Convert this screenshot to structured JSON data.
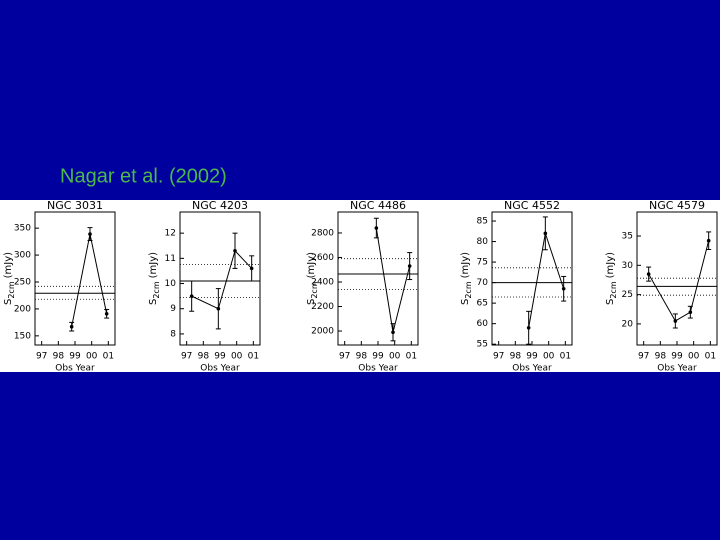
{
  "caption": "Nagar et al. (2002)",
  "chart_data": [
    {
      "type": "line",
      "title": "NGC 3031",
      "xlabel": "Obs Year",
      "ylabel": {
        "symbol": "S",
        "subscript": "2cm",
        "unit": "(mJy)"
      },
      "x": [
        1998.8,
        1999.9,
        2000.9
      ],
      "values": [
        167,
        339,
        191
      ],
      "errors": [
        8,
        12,
        8
      ],
      "xlim": [
        1996.6,
        2001.4
      ],
      "ylim": [
        133,
        380
      ],
      "xticks": [
        {
          "value": 1997,
          "label": "97"
        },
        {
          "value": 1998,
          "label": "98"
        },
        {
          "value": 1999,
          "label": "99"
        },
        {
          "value": 2000,
          "label": "00"
        },
        {
          "value": 2001,
          "label": "01"
        }
      ],
      "yticks": [
        150,
        200,
        250,
        300,
        350
      ],
      "hlines": [
        {
          "value": 229,
          "style": "solid"
        },
        {
          "value": 242,
          "style": "dotted"
        },
        {
          "value": 218,
          "style": "dotted"
        }
      ],
      "color": "#000000"
    },
    {
      "type": "line",
      "title": "NGC 4203",
      "xlabel": "Obs Year",
      "ylabel": {
        "symbol": "S",
        "subscript": "2cm",
        "unit": "(mJy)"
      },
      "x": [
        1997.3,
        1998.9,
        1999.9,
        2000.9
      ],
      "values": [
        9.5,
        9.0,
        11.3,
        10.6
      ],
      "errors": [
        0.6,
        0.8,
        0.7,
        0.5
      ],
      "xlim": [
        1996.6,
        2001.4
      ],
      "ylim": [
        7.56,
        12.84
      ],
      "xticks": [
        {
          "value": 1997,
          "label": "97"
        },
        {
          "value": 1998,
          "label": "98"
        },
        {
          "value": 1999,
          "label": "99"
        },
        {
          "value": 2000,
          "label": "00"
        },
        {
          "value": 2001,
          "label": "01"
        }
      ],
      "yticks": [
        8,
        9,
        10,
        11,
        12
      ],
      "hlines": [
        {
          "value": 10.1,
          "style": "solid"
        },
        {
          "value": 10.75,
          "style": "dotted"
        },
        {
          "value": 9.45,
          "style": "dotted"
        }
      ],
      "color": "#000000"
    },
    {
      "type": "line",
      "title": "NGC 4486",
      "xlabel": "Obs Year",
      "ylabel": {
        "symbol": "S",
        "subscript": "2cm",
        "unit": "(mJy)"
      },
      "x": [
        1998.9,
        1999.9,
        2000.9
      ],
      "values": [
        2840,
        1990,
        2530
      ],
      "errors": [
        80,
        70,
        110
      ],
      "xlim": [
        1996.6,
        2001.4
      ],
      "ylim": [
        1886,
        2971
      ],
      "xticks": [
        {
          "value": 1997,
          "label": "97"
        },
        {
          "value": 1998,
          "label": "98"
        },
        {
          "value": 1999,
          "label": "99"
        },
        {
          "value": 2000,
          "label": "00"
        },
        {
          "value": 2001,
          "label": "01"
        }
      ],
      "yticks": [
        2000,
        2200,
        2400,
        2600,
        2800
      ],
      "hlines": [
        {
          "value": 2465,
          "style": "solid"
        },
        {
          "value": 2590,
          "style": "dotted"
        },
        {
          "value": 2340,
          "style": "dotted"
        }
      ],
      "color": "#000000"
    },
    {
      "type": "line",
      "title": "NGC 4552",
      "xlabel": "Obs Year",
      "ylabel": {
        "symbol": "S",
        "subscript": "2cm",
        "unit": "(mJy)"
      },
      "x": [
        1998.8,
        1999.8,
        2000.9
      ],
      "values": [
        59,
        82,
        68.5
      ],
      "errors": [
        4,
        4,
        3
      ],
      "xlim": [
        1996.6,
        2001.4
      ],
      "ylim": [
        54.8,
        87.2
      ],
      "xticks": [
        {
          "value": 1997,
          "label": "97"
        },
        {
          "value": 1998,
          "label": "98"
        },
        {
          "value": 1999,
          "label": "99"
        },
        {
          "value": 2000,
          "label": "00"
        },
        {
          "value": 2001,
          "label": "01"
        }
      ],
      "yticks": [
        55,
        60,
        65,
        70,
        75,
        80,
        85
      ],
      "hlines": [
        {
          "value": 70,
          "style": "solid"
        },
        {
          "value": 73.6,
          "style": "dotted"
        },
        {
          "value": 66.5,
          "style": "dotted"
        }
      ],
      "color": "#000000"
    },
    {
      "type": "line",
      "title": "NGC 4579",
      "xlabel": "Obs Year",
      "ylabel": {
        "symbol": "S",
        "subscript": "2cm",
        "unit": "(mJy)"
      },
      "x": [
        1997.3,
        1998.9,
        1999.8,
        2000.9
      ],
      "values": [
        28.5,
        20.5,
        22.0,
        34.2
      ],
      "errors": [
        1.2,
        1.2,
        1.0,
        1.5
      ],
      "xlim": [
        1996.6,
        2001.4
      ],
      "ylim": [
        16.4,
        39.1
      ],
      "xticks": [
        {
          "value": 1997,
          "label": "97"
        },
        {
          "value": 1998,
          "label": "98"
        },
        {
          "value": 1999,
          "label": "99"
        },
        {
          "value": 2000,
          "label": "00"
        },
        {
          "value": 2001,
          "label": "01"
        }
      ],
      "yticks": [
        20,
        25,
        30,
        35
      ],
      "hlines": [
        {
          "value": 26.4,
          "style": "solid"
        },
        {
          "value": 27.8,
          "style": "dotted"
        },
        {
          "value": 24.9,
          "style": "dotted"
        }
      ],
      "color": "#000000"
    }
  ]
}
